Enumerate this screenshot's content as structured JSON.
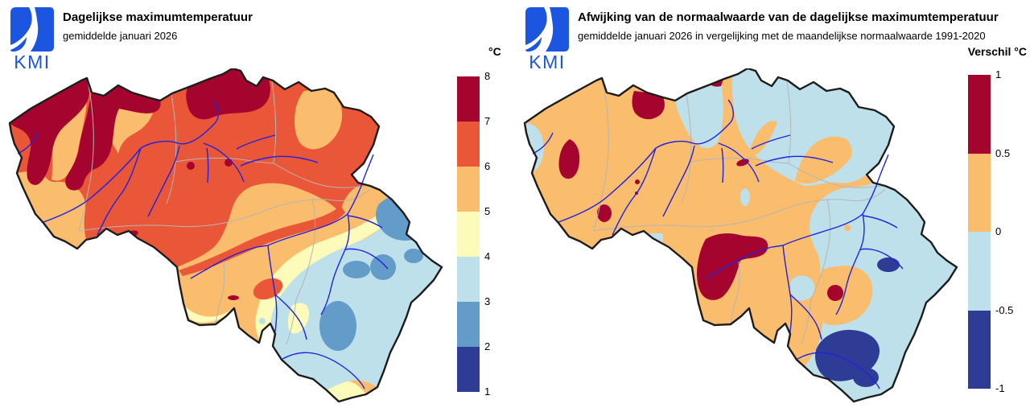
{
  "logo": {
    "text": "KMI"
  },
  "palette": {
    "dark_red": "#A5042F",
    "vermillion": "#EA5638",
    "sandy": "#FABC6D",
    "pale_yellow": "#FDFBB9",
    "light_blue": "#BEE0EA",
    "mid_blue": "#649CC9",
    "navy": "#2E3C95",
    "river": "#2222DD",
    "province": "#B5B5B5",
    "border": "#1C1C1C",
    "logo_blue": "#1C55E0"
  },
  "panels": [
    {
      "title": "Dagelijkse maximumtemperatuur",
      "subtitle": "gemiddelde januari 2026",
      "legend": {
        "unit": "°C",
        "colors": [
          "#A5042F",
          "#EA5638",
          "#FABC6D",
          "#FDFBB9",
          "#BEE0EA",
          "#649CC9",
          "#2E3C95"
        ],
        "ticks": [
          "8",
          "7",
          "6",
          "5",
          "4",
          "3",
          "2",
          "1"
        ]
      }
    },
    {
      "title": "Afwijking van de normaalwaarde van de dagelijkse maximumtemperatuur",
      "subtitle": "gemiddelde januari 2026 in vergelijking met de maandelijkse normaalwaarde 1991-2020",
      "legend": {
        "unit": "Verschil °C",
        "colors": [
          "#A5042F",
          "#FABC6D",
          "#BEE0EA",
          "#2E3C95"
        ],
        "ticks": [
          "1",
          "0.5",
          "0",
          "-0.5",
          "-1"
        ]
      }
    }
  ]
}
